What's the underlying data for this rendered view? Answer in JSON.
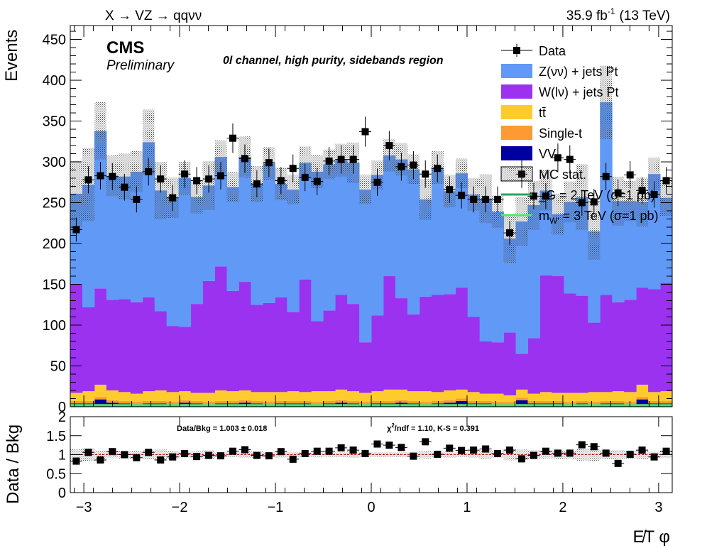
{
  "header": {
    "process": "X → VZ → qqνν",
    "lumi_value": "35.9 fb",
    "lumi_exp": "-1",
    "energy": "(13 TeV)"
  },
  "labels": {
    "cms": "CMS",
    "preliminary": "Preliminary",
    "region": "0l channel, high purity, sidebands region"
  },
  "ratio_text": {
    "data_bkg": "Data/Bkg = 1.003 ± 0.018",
    "chi2_pre": "χ",
    "chi2_exp": "2",
    "chi2_post": "/ndf = 1.10,   K-S = 0.391"
  },
  "legend": [
    {
      "label": "Data",
      "style": "marker",
      "color": "#000000"
    },
    {
      "label": "Z(νν) + jets Pt",
      "style": "fill",
      "color": "#6199f7"
    },
    {
      "label": "W(lν) + jets Pt",
      "style": "fill",
      "color": "#9a32f0"
    },
    {
      "label": "tt̄",
      "style": "fill",
      "color": "#fecb2f"
    },
    {
      "label": "Single-t",
      "style": "fill",
      "color": "#fd9a34"
    },
    {
      "label": "VV",
      "style": "fill",
      "color": "#0000a0"
    },
    {
      "label": "MC stat.",
      "style": "hatch",
      "color": "#000000"
    },
    {
      "label": "_G = 2 TeV (σ=1 pb)",
      "prefix": "",
      "sub": "",
      "style": "line",
      "color": "#2fa060"
    },
    {
      "label": " = 3 TeV (σ=1 pb)",
      "prefix": "m",
      "sub": "W'",
      "style": "line",
      "color": "#59e36a"
    }
  ],
  "chart_data": [
    {
      "type": "bar",
      "stacked": true,
      "xlabel": "E̸T φ",
      "ylabel": "Events",
      "xlim": [
        -3.1416,
        3.1416
      ],
      "ylim": [
        0,
        467
      ],
      "yticks": [
        0,
        50,
        100,
        150,
        200,
        250,
        300,
        350,
        400,
        450
      ],
      "xticks": [
        -3,
        -2,
        -1,
        0,
        1,
        2,
        3
      ],
      "x": [
        -3.079,
        -2.953,
        -2.827,
        -2.702,
        -2.576,
        -2.45,
        -2.325,
        -2.199,
        -2.073,
        -1.948,
        -1.822,
        -1.696,
        -1.571,
        -1.445,
        -1.319,
        -1.194,
        -1.068,
        -0.942,
        -0.817,
        -0.691,
        -0.565,
        -0.44,
        -0.314,
        -0.188,
        -0.063,
        0.063,
        0.188,
        0.314,
        0.44,
        0.565,
        0.691,
        0.817,
        0.942,
        1.068,
        1.194,
        1.319,
        1.445,
        1.571,
        1.696,
        1.822,
        1.948,
        2.073,
        2.199,
        2.325,
        2.45,
        2.576,
        2.702,
        2.827,
        2.953,
        3.079
      ],
      "series": [
        {
          "name": "VV",
          "color": "#0000a0",
          "values": [
            4,
            4,
            9,
            5,
            4,
            3,
            4,
            4,
            3,
            5,
            4,
            3,
            4,
            4,
            5,
            4,
            3,
            4,
            4,
            4,
            3,
            4,
            5,
            4,
            3,
            4,
            4,
            5,
            4,
            3,
            4,
            5,
            7,
            4,
            4,
            3,
            3,
            8,
            4,
            4,
            4,
            3,
            4,
            3,
            4,
            4,
            3,
            9,
            4,
            4
          ]
        },
        {
          "name": "Single-t",
          "color": "#fd9a34",
          "values": [
            3,
            3,
            3,
            3,
            3,
            3,
            3,
            3,
            3,
            3,
            3,
            3,
            3,
            3,
            3,
            3,
            3,
            3,
            3,
            3,
            3,
            3,
            3,
            3,
            3,
            3,
            3,
            3,
            3,
            3,
            3,
            3,
            3,
            3,
            3,
            3,
            3,
            3,
            3,
            3,
            3,
            3,
            3,
            3,
            3,
            3,
            3,
            3,
            3,
            3
          ]
        },
        {
          "name": "tt̄",
          "color": "#fecb2f",
          "values": [
            10,
            12,
            15,
            12,
            11,
            10,
            12,
            13,
            12,
            11,
            10,
            11,
            13,
            12,
            12,
            11,
            12,
            11,
            12,
            11,
            13,
            12,
            13,
            12,
            11,
            12,
            14,
            13,
            12,
            13,
            11,
            12,
            11,
            11,
            9,
            10,
            8,
            10,
            9,
            11,
            10,
            11,
            10,
            12,
            11,
            12,
            12,
            15,
            11,
            12
          ]
        },
        {
          "name": "W(lν) + jets Pt",
          "color": "#9a32f0",
          "values": [
            133,
            103,
            118,
            111,
            114,
            112,
            115,
            97,
            81,
            79,
            109,
            137,
            152,
            123,
            133,
            107,
            109,
            116,
            97,
            138,
            86,
            99,
            116,
            107,
            62,
            93,
            139,
            112,
            94,
            116,
            119,
            118,
            125,
            92,
            64,
            63,
            77,
            44,
            68,
            143,
            143,
            122,
            119,
            85,
            119,
            109,
            113,
            119,
            126,
            133
          ]
        },
        {
          "name": "Z(νν) + jets Pt",
          "color": "#6199f7",
          "values": [
            111,
            150,
            193,
            152,
            150,
            160,
            190,
            148,
            157,
            182,
            131,
            117,
            134,
            127,
            153,
            148,
            171,
            139,
            150,
            143,
            183,
            179,
            165,
            173,
            187,
            172,
            148,
            170,
            178,
            119,
            156,
            126,
            140,
            150,
            175,
            160,
            115,
            162,
            163,
            104,
            76,
            112,
            121,
            112,
            236,
            124,
            121,
            105,
            141,
            104
          ]
        },
        {
          "name": "MC stat.",
          "values": [
            40,
            45,
            35,
            25,
            28,
            25,
            40,
            35,
            25,
            20,
            20,
            30,
            20,
            18,
            25,
            22,
            20,
            20,
            18,
            20,
            20,
            18,
            20,
            25,
            18,
            18,
            20,
            20,
            18,
            25,
            20,
            20,
            18,
            20,
            30,
            20,
            30,
            30,
            30,
            25,
            25,
            25,
            40,
            35,
            45,
            30,
            25,
            30,
            20,
            22
          ]
        }
      ],
      "signal": [
        {
          "name": "G = 2 TeV (σ=1 pb)",
          "color": "#2fa060",
          "value": 1
        },
        {
          "name": "W' = 3 TeV (σ=1 pb)",
          "color": "#59e36a",
          "value": 1
        }
      ],
      "data": {
        "name": "Data",
        "values": [
          217,
          278,
          283,
          282,
          269,
          254,
          288,
          279,
          256,
          285,
          277,
          279,
          283,
          329,
          304,
          273,
          299,
          277,
          292,
          281,
          276,
          301,
          303,
          303,
          337,
          275,
          320,
          294,
          296,
          285,
          292,
          266,
          259,
          254,
          254,
          254,
          213,
          285,
          258,
          258,
          305,
          303,
          250,
          251,
          282,
          262,
          284,
          265,
          260,
          277
        ]
      }
    },
    {
      "type": "scatter",
      "ylabel": "Data / Bkg",
      "ylim": [
        0,
        2
      ],
      "yticks": [
        0,
        0.5,
        1,
        1.5,
        2
      ],
      "reference": 1,
      "values": [
        0.83,
        1.06,
        0.86,
        1.08,
        1.0,
        0.92,
        1.06,
        0.86,
        0.94,
        1.03,
        0.95,
        0.98,
        0.97,
        1.09,
        1.13,
        0.98,
        0.97,
        1.08,
        0.88,
        1.03,
        1.09,
        1.09,
        1.18,
        1.12,
        1.03,
        1.28,
        1.25,
        1.19,
        0.96,
        1.34,
        1.01,
        1.17,
        1.11,
        1.12,
        1.15,
        1.03,
        1.12,
        0.89,
        0.98,
        1.09,
        1.04,
        1.04,
        1.26,
        1.21,
        1.04,
        0.77,
        1.01,
        1.12,
        0.94,
        1.09
      ]
    }
  ]
}
